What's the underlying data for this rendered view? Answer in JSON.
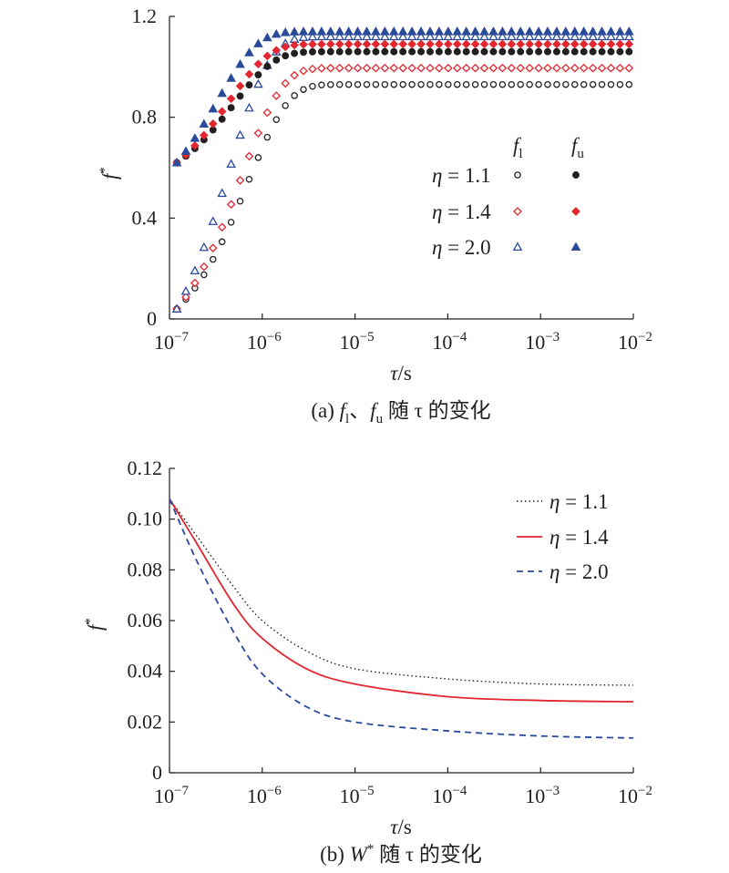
{
  "colors": {
    "black": "#231f20",
    "red": "#e3262f",
    "blue": "#2a4a9a"
  },
  "chart_data": [
    {
      "type": "scatter",
      "caption": {
        "prefix": "(a) ",
        "f": "f",
        "l": "l",
        "sep": "、",
        "u": "u",
        "rest": " 随 τ 的变化"
      },
      "ylabel": "f*",
      "xlabel": "τ/s",
      "xscale": "log",
      "xlim": [
        1e-07,
        0.01
      ],
      "ylim": [
        0,
        1.2
      ],
      "yticks": [
        "0",
        "0.4",
        "0.8",
        "1.2"
      ],
      "yticks_values": [
        0,
        0.4,
        0.8,
        1.2
      ],
      "xticks": [
        {
          "base": "10",
          "exp": "−7",
          "value": 1e-07
        },
        {
          "base": "10",
          "exp": "−6",
          "value": 1e-06
        },
        {
          "base": "10",
          "exp": "−5",
          "value": 1e-05
        },
        {
          "base": "10",
          "exp": "−4",
          "value": 0.0001
        },
        {
          "base": "10",
          "exp": "−3",
          "value": 0.001
        },
        {
          "base": "10",
          "exp": "−2",
          "value": 0.01
        }
      ],
      "legend_header": {
        "col1_f": "f",
        "col1_sub": "l",
        "col2_f": "f",
        "col2_sub": "u"
      },
      "legend": [
        {
          "label": "η = 1.1"
        },
        {
          "label": "η = 1.4"
        },
        {
          "label": "η = 2.0"
        }
      ],
      "series": [
        {
          "name": "η = 1.1 (fl)",
          "marker": "circle-open",
          "color": "#231f20",
          "y_start": 0.04,
          "y_end": 0.93,
          "tau": 7e-07
        },
        {
          "name": "η = 1.4 (fl)",
          "marker": "diamond-open",
          "color": "#e3262f",
          "y_start": 0.04,
          "y_end": 0.995,
          "tau": 6e-07
        },
        {
          "name": "η = 2.0 (fl)",
          "marker": "triangle-open",
          "color": "#2a4a9a",
          "y_start": 0.04,
          "y_end": 1.12,
          "tau": 4.5e-07
        },
        {
          "name": "η = 1.1 (fu)",
          "marker": "circle-filled",
          "color": "#231f20",
          "y_start": 0.62,
          "y_end": 1.06,
          "tau": 5e-07
        },
        {
          "name": "η = 1.4 (fu)",
          "marker": "diamond-filled",
          "color": "#e3262f",
          "y_start": 0.62,
          "y_end": 1.09,
          "tau": 4.4e-07
        },
        {
          "name": "η = 2.0 (fu)",
          "marker": "triangle-filled",
          "color": "#2a4a9a",
          "y_start": 0.62,
          "y_end": 1.14,
          "tau": 3.3e-07
        }
      ]
    },
    {
      "type": "line",
      "caption": {
        "prefix": "(b) ",
        "w": "W",
        "star": "*",
        "rest": " 随 τ 的变化"
      },
      "ylabel": "f*",
      "xlabel": "τ/s",
      "xscale": "log",
      "xlim": [
        1e-07,
        0.01
      ],
      "ylim": [
        0,
        0.12
      ],
      "yticks": [
        "0",
        "0.02",
        "0.04",
        "0.06",
        "0.08",
        "0.10",
        "0.12"
      ],
      "yticks_values": [
        0,
        0.02,
        0.04,
        0.06,
        0.08,
        0.1,
        0.12
      ],
      "xticks": [
        {
          "base": "10",
          "exp": "−7",
          "value": 1e-07
        },
        {
          "base": "10",
          "exp": "−6",
          "value": 1e-06
        },
        {
          "base": "10",
          "exp": "−5",
          "value": 1e-05
        },
        {
          "base": "10",
          "exp": "−4",
          "value": 0.0001
        },
        {
          "base": "10",
          "exp": "−3",
          "value": 0.001
        },
        {
          "base": "10",
          "exp": "−2",
          "value": 0.01
        }
      ],
      "series": [
        {
          "name": "η = 1.1",
          "style": "dotted",
          "color": "#231f20",
          "x": [
            1e-07,
            2e-07,
            5e-07,
            1e-06,
            3e-06,
            1e-05,
            0.0001,
            0.001,
            0.01
          ],
          "y": [
            0.108,
            0.093,
            0.073,
            0.06,
            0.048,
            0.041,
            0.037,
            0.035,
            0.0345
          ]
        },
        {
          "name": "η = 1.4",
          "style": "solid",
          "color": "#e3262f",
          "x": [
            1e-07,
            2e-07,
            5e-07,
            1e-06,
            3e-06,
            1e-05,
            0.0001,
            0.001,
            0.01
          ],
          "y": [
            0.108,
            0.09,
            0.066,
            0.053,
            0.041,
            0.035,
            0.03,
            0.0285,
            0.028
          ]
        },
        {
          "name": "η = 2.0",
          "style": "dashed",
          "color": "#2a4a9a",
          "x": [
            1e-07,
            2e-07,
            5e-07,
            1e-06,
            3e-06,
            1e-05,
            0.0001,
            0.001,
            0.01
          ],
          "y": [
            0.108,
            0.083,
            0.055,
            0.039,
            0.026,
            0.02,
            0.0165,
            0.0145,
            0.0137
          ]
        }
      ]
    }
  ]
}
